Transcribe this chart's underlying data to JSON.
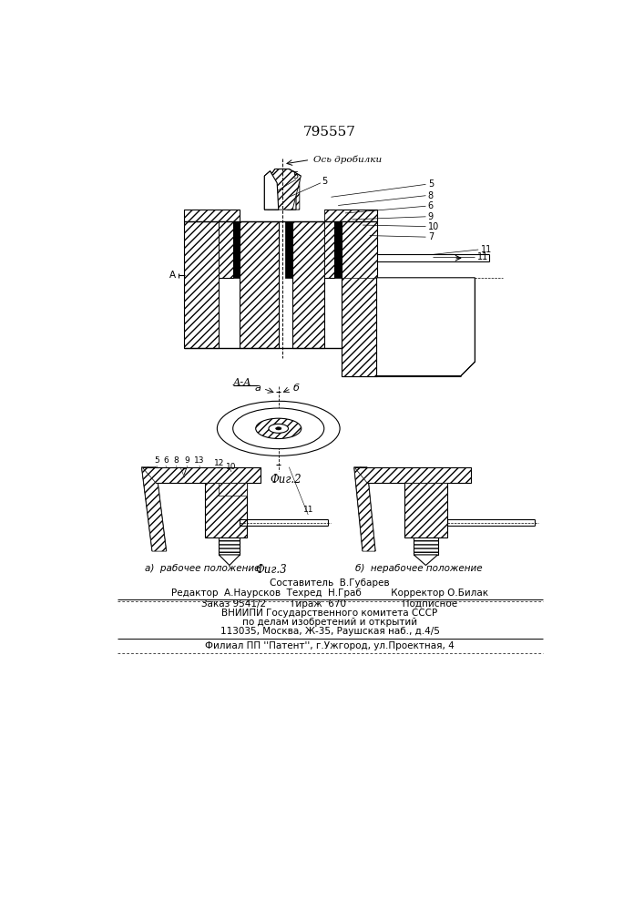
{
  "title_number": "795557",
  "fig1_label": "Ось дробилки",
  "fig2_label": "Фиг.2",
  "fig3_label": "Фиг.3",
  "section_label": "А-А",
  "fig3a_label": "а)  рабочее положение",
  "fig3b_label": "б)  нерабочее положение",
  "footer_line1": "Составитель  В.Губарев",
  "footer_line2": "Редактор  А.Наурсков  Техред  Н.Граб          Корректор О.Билак",
  "footer_line3": "Заказ 9541/2        Тираж  670                   Подписное",
  "footer_line4": "ВНИИПИ Государственного комитета СССР",
  "footer_line5": "по делам изобретений и открытий",
  "footer_line6": "113035, Москва, Ж-35, Раушская наб., д.4/5",
  "footer_line7": "Филиал ПП ''Патент'', г.Ужгород, ул.Проектная, 4",
  "bg_color": "#ffffff",
  "line_color": "#000000"
}
